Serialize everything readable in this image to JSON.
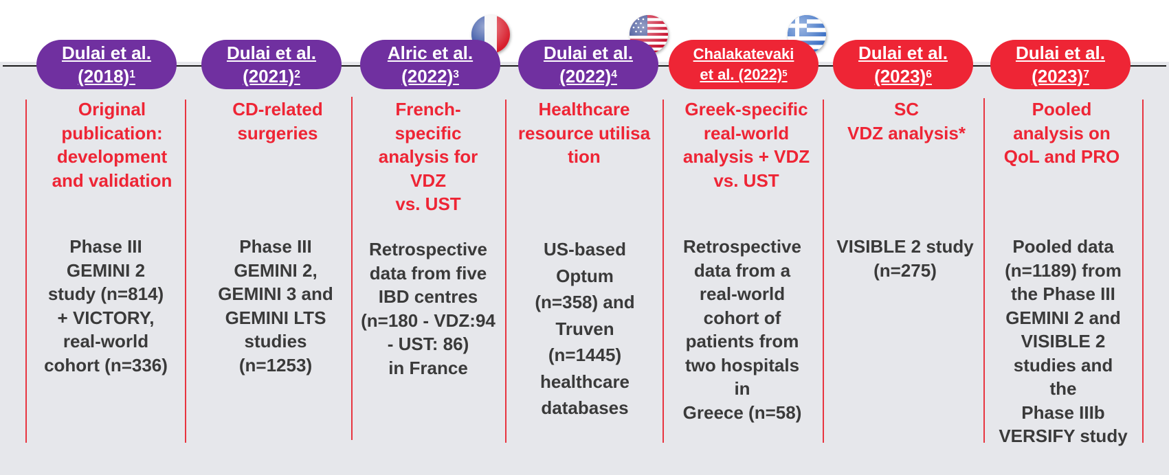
{
  "studies": [
    {
      "author": "Dulai et al.",
      "year_line": "(2018)",
      "ref": "1",
      "title": "Original\npublication:\ndevelopment\nand validation",
      "description": "Phase III\nGEMINI 2\nstudy (n=814)\n+ VICTORY,\nreal-world\ncohort (n=336)",
      "color": "#7030a0",
      "flag": null
    },
    {
      "author": "Dulai et al.",
      "year_line": "(2021)",
      "ref": "2",
      "title": "CD-related\nsurgeries",
      "description": "Phase III\nGEMINI 2,\nGEMINI 3 and\nGEMINI LTS\nstudies\n(n=1253)",
      "color": "#7030a0",
      "flag": null
    },
    {
      "author": "Alric et al.",
      "year_line": "(2022)",
      "ref": "3",
      "title": "French-\nspecific\nanalysis for\nVDZ\nvs. UST",
      "description": "Retrospective\ndata from five\nIBD centres\n(n=180 - VDZ:94\n- UST: 86)\nin France",
      "color": "#7030a0",
      "flag": "france-flag-icon"
    },
    {
      "author": "Dulai et al.",
      "year_line": "(2022)",
      "ref": "4",
      "title": "Healthcare\nresource utilisa\ntion",
      "description": "US-based\nOptum\n(n=358) and\nTruven\n(n=1445)\nhealthcare\ndatabases",
      "color": "#7030a0",
      "flag": "usa-flag-icon"
    },
    {
      "author": "Chalakatevaki",
      "year_line": "et al. (2022)",
      "ref": "5",
      "title": "Greek-specific\nreal-world\nanalysis + VDZ\nvs. UST",
      "description": "Retrospective\ndata from a\nreal-world\ncohort of\npatients from\ntwo hospitals\nin\nGreece (n=58)",
      "color": "#ee2535",
      "flag": "greece-flag-icon"
    },
    {
      "author": "Dulai et al.",
      "year_line": "(2023)",
      "ref": "6",
      "title": "SC\nVDZ analysis*",
      "description": "VISIBLE 2 study\n(n=275)",
      "color": "#ee2535",
      "flag": null
    },
    {
      "author": "Dulai et al.",
      "year_line": "(2023)",
      "ref": "7",
      "title": "Pooled\nanalysis on\nQoL and PRO",
      "description": "Pooled data\n(n=1189) from\nthe Phase III\nGEMINI 2 and\nVISIBLE 2\nstudies and\nthe\nPhase IIIb\nVERSIFY study",
      "color": "#ee2535",
      "flag": null
    }
  ]
}
